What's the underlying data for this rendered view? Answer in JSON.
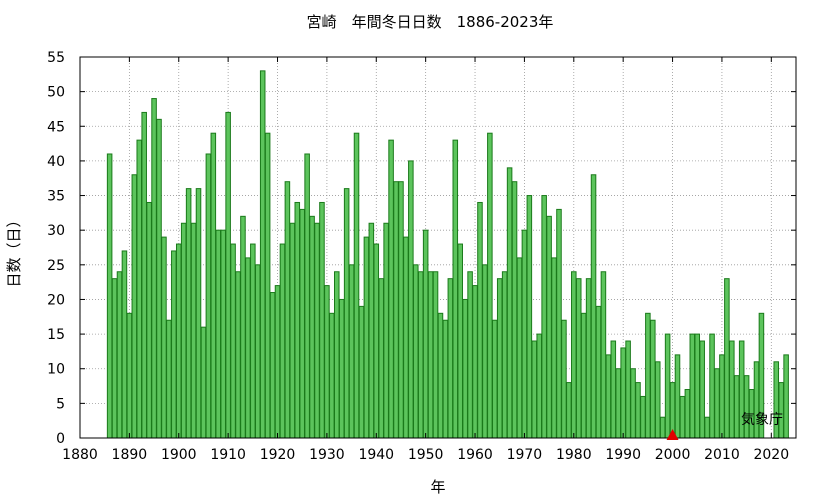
{
  "chart_data": {
    "type": "bar",
    "title": "宮崎　年間冬日日数　1886-2023年",
    "xlabel": "年",
    "ylabel": "日数（日）",
    "xlim": [
      1880,
      2025
    ],
    "ylim": [
      0,
      55
    ],
    "xticks": [
      1880,
      1890,
      1900,
      1910,
      1920,
      1930,
      1940,
      1950,
      1960,
      1970,
      1980,
      1990,
      2000,
      2010,
      2020
    ],
    "yticks": [
      0,
      5,
      10,
      15,
      20,
      25,
      30,
      35,
      40,
      45,
      50,
      55
    ],
    "grid": true,
    "bar_color": "#5cc45c",
    "bar_edge_color": "#1a7a1a",
    "marker": {
      "year": 2000,
      "shape": "triangle",
      "color": "#e00000"
    },
    "credit": "気象庁",
    "x": [
      1886,
      1887,
      1888,
      1889,
      1890,
      1891,
      1892,
      1893,
      1894,
      1895,
      1896,
      1897,
      1898,
      1899,
      1900,
      1901,
      1902,
      1903,
      1904,
      1905,
      1906,
      1907,
      1908,
      1909,
      1910,
      1911,
      1912,
      1913,
      1914,
      1915,
      1916,
      1917,
      1918,
      1919,
      1920,
      1921,
      1922,
      1923,
      1924,
      1925,
      1926,
      1927,
      1928,
      1929,
      1930,
      1931,
      1932,
      1933,
      1934,
      1935,
      1936,
      1937,
      1938,
      1939,
      1940,
      1941,
      1942,
      1943,
      1944,
      1945,
      1946,
      1947,
      1948,
      1949,
      1950,
      1951,
      1952,
      1953,
      1954,
      1955,
      1956,
      1957,
      1958,
      1959,
      1960,
      1961,
      1962,
      1963,
      1964,
      1965,
      1966,
      1967,
      1968,
      1969,
      1970,
      1971,
      1972,
      1973,
      1974,
      1975,
      1976,
      1977,
      1978,
      1979,
      1980,
      1981,
      1982,
      1983,
      1984,
      1985,
      1986,
      1987,
      1988,
      1989,
      1990,
      1991,
      1992,
      1993,
      1994,
      1995,
      1996,
      1997,
      1998,
      1999,
      2000,
      2001,
      2002,
      2003,
      2004,
      2005,
      2006,
      2007,
      2008,
      2009,
      2010,
      2011,
      2012,
      2013,
      2014,
      2015,
      2016,
      2017,
      2018,
      2019,
      2020,
      2021,
      2022,
      2023
    ],
    "values": [
      41,
      23,
      24,
      27,
      18,
      38,
      43,
      47,
      34,
      49,
      46,
      29,
      17,
      27,
      28,
      31,
      36,
      31,
      36,
      16,
      41,
      44,
      30,
      30,
      47,
      28,
      24,
      32,
      26,
      28,
      25,
      53,
      44,
      21,
      22,
      28,
      37,
      31,
      34,
      33,
      41,
      32,
      31,
      34,
      22,
      18,
      24,
      20,
      36,
      25,
      44,
      19,
      29,
      31,
      28,
      23,
      31,
      43,
      37,
      37,
      29,
      40,
      25,
      24,
      30,
      24,
      24,
      18,
      17,
      23,
      43,
      28,
      20,
      24,
      22,
      34,
      25,
      44,
      17,
      23,
      24,
      39,
      37,
      26,
      30,
      35,
      14,
      15,
      35,
      32,
      26,
      33,
      17,
      8,
      24,
      23,
      18,
      23,
      38,
      19,
      24,
      12,
      14,
      10,
      13,
      14,
      10,
      8,
      6,
      18,
      17,
      11,
      3,
      15,
      8,
      12,
      6,
      7,
      15,
      15,
      14,
      3,
      15,
      10,
      12,
      23,
      14,
      9,
      14,
      9,
      7,
      11,
      18,
      0,
      0,
      11,
      8,
      12
    ]
  }
}
